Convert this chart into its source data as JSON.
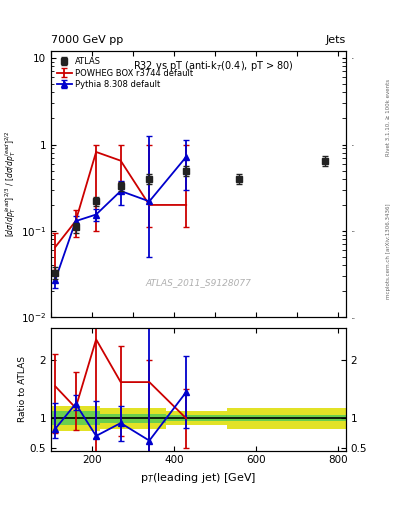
{
  "title_top_left": "7000 GeV pp",
  "title_top_right": "Jets",
  "inner_title": "R32 vs pT (anti-k_{T}(0.4), pT > 80)",
  "watermark": "ATLAS_2011_S9128077",
  "right_label_top": "Rivet 3.1.10, ≥ 100k events",
  "right_label_bot": "mcplots.cern.ch [arXiv:1306.3436]",
  "atlas_x": [
    110,
    160,
    210,
    270,
    340,
    430,
    560,
    770
  ],
  "atlas_y": [
    0.033,
    0.11,
    0.22,
    0.33,
    0.4,
    0.5,
    0.4,
    0.65
  ],
  "atlas_yerr_lo": [
    0.005,
    0.015,
    0.025,
    0.04,
    0.055,
    0.065,
    0.055,
    0.09
  ],
  "atlas_yerr_hi": [
    0.005,
    0.015,
    0.025,
    0.04,
    0.055,
    0.065,
    0.055,
    0.09
  ],
  "powheg_x": [
    110,
    160,
    210,
    270,
    340,
    430
  ],
  "powheg_y": [
    0.065,
    0.13,
    0.82,
    0.65,
    0.2,
    0.2
  ],
  "powheg_yerr_lo": [
    0.03,
    0.045,
    0.72,
    0.28,
    0.09,
    0.09
  ],
  "powheg_yerr_hi": [
    0.03,
    0.045,
    0.18,
    0.33,
    0.8,
    0.8
  ],
  "pythia_x": [
    110,
    160,
    210,
    270,
    340,
    430
  ],
  "pythia_y": [
    0.027,
    0.13,
    0.155,
    0.29,
    0.22,
    0.72
  ],
  "pythia_yerr_lo": [
    0.005,
    0.02,
    0.025,
    0.09,
    0.17,
    0.42
  ],
  "pythia_yerr_hi": [
    0.005,
    0.02,
    0.025,
    0.09,
    1.05,
    0.42
  ],
  "powheg_ratio_x": [
    110,
    160,
    210,
    270,
    340,
    430
  ],
  "powheg_ratio_y": [
    1.55,
    1.18,
    2.35,
    1.62,
    1.62,
    1.0
  ],
  "powheg_ratio_yerr_lo": [
    0.8,
    0.38,
    2.05,
    0.92,
    1.22,
    0.5
  ],
  "powheg_ratio_yerr_hi": [
    0.55,
    0.62,
    0.38,
    0.62,
    0.38,
    0.5
  ],
  "pythia_ratio_x": [
    110,
    160,
    210,
    270,
    340,
    430
  ],
  "pythia_ratio_y": [
    0.82,
    1.25,
    0.7,
    0.92,
    0.62,
    1.45
  ],
  "pythia_ratio_yerr_lo": [
    0.15,
    0.1,
    0.03,
    0.3,
    0.24,
    0.62
  ],
  "pythia_ratio_yerr_hi": [
    0.45,
    0.15,
    0.6,
    0.3,
    1.95,
    0.62
  ],
  "band_yellow_edges": [
    100,
    220,
    380,
    530,
    820
  ],
  "band_yellow_lo": [
    0.78,
    0.82,
    0.88,
    0.82,
    0.82
  ],
  "band_yellow_hi": [
    1.22,
    1.18,
    1.12,
    1.18,
    1.18
  ],
  "band_green_edges": [
    100,
    220,
    380,
    530,
    820
  ],
  "band_green_lo": [
    0.88,
    0.92,
    0.95,
    0.95,
    0.95
  ],
  "band_green_hi": [
    1.12,
    1.08,
    1.05,
    1.05,
    1.05
  ],
  "xlim": [
    100,
    820
  ],
  "ylim_main": [
    0.01,
    12
  ],
  "ylim_ratio": [
    0.45,
    2.55
  ],
  "color_atlas": "#222222",
  "color_powheg": "#cc0000",
  "color_pythia": "#0000cc",
  "color_green": "#55cc55",
  "color_yellow": "#dddd00",
  "bg_color": "#ffffff"
}
